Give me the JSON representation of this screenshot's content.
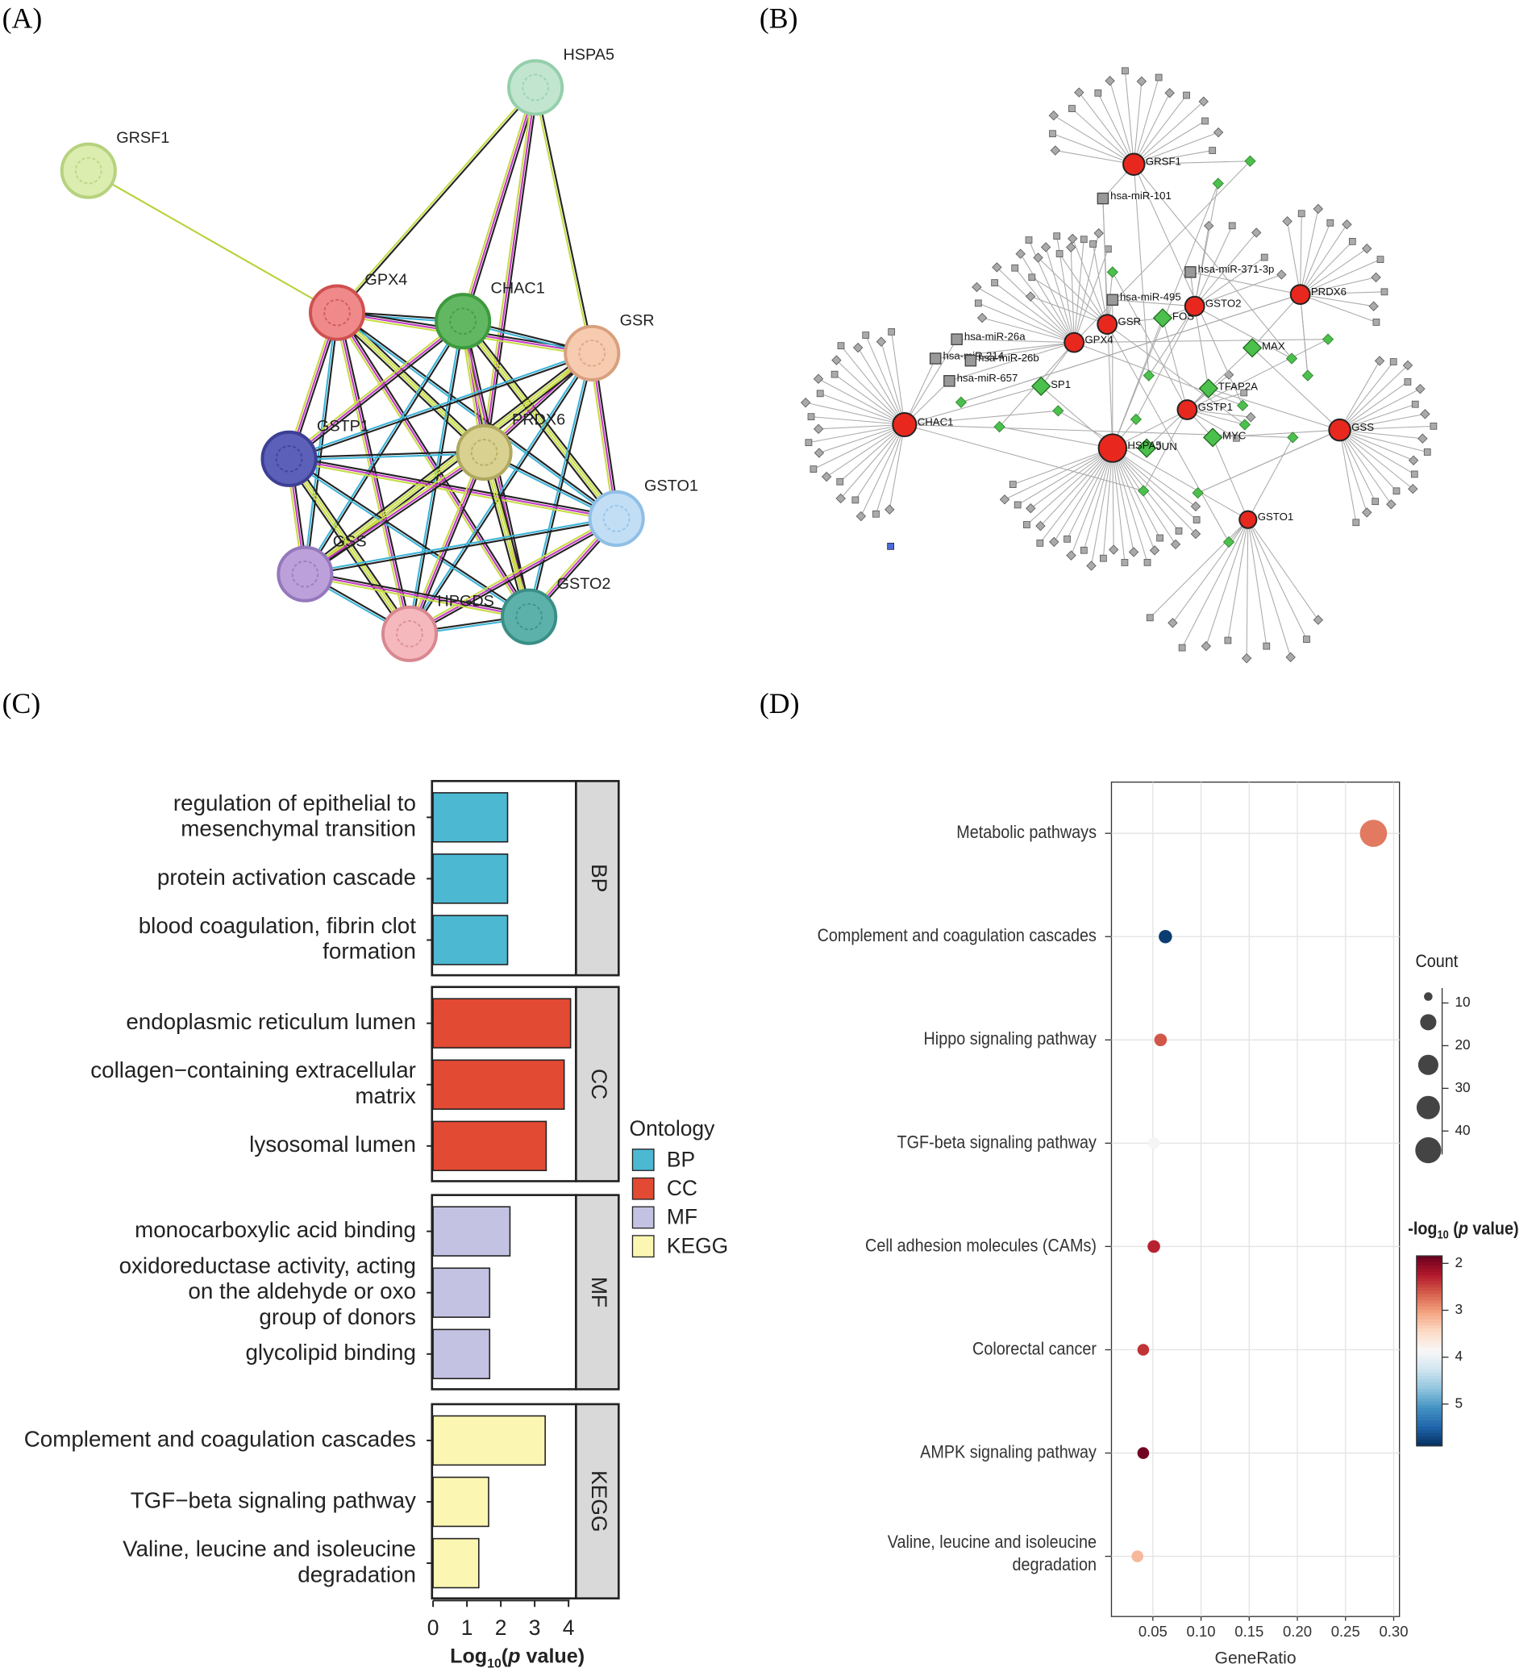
{
  "panels": [
    "(A)",
    "(B)",
    "(C)",
    "(D)"
  ],
  "network_a": {
    "nodes": [
      "GRSF1",
      "HSPA5",
      "GPX4",
      "CHAC1",
      "GSR",
      "GSTP1",
      "PRDX6",
      "GSTO1",
      "GSS",
      "HPGDS",
      "GSTO2"
    ]
  },
  "network_b": {
    "genes": [
      "GRSF1",
      "GSR",
      "GSTO2",
      "PRDX6",
      "GPX4",
      "CHAC1",
      "HSPA5",
      "GSTP1",
      "GSS",
      "GSTO1"
    ],
    "mirnas": [
      "hsa-miR-101",
      "hsa-miR-371-3p",
      "hsa-miR-495",
      "hsa-miR-26a",
      "hsa-miR-214",
      "hsa-miR-26b",
      "hsa-miR-657"
    ],
    "tfs": [
      "FOS",
      "MAX",
      "TFAP2A",
      "SP1",
      "JUN",
      "MYC"
    ]
  },
  "chart_data": [
    {
      "type": "bar",
      "orientation": "horizontal",
      "facets": [
        {
          "name": "BP",
          "color": "#4cb8d2",
          "categories": [
            [
              "regulation of epithelial to",
              "mesenchymal transition"
            ],
            [
              "protein activation cascade"
            ],
            [
              "blood coagulation, fibrin clot",
              "formation"
            ]
          ],
          "values": [
            2.2,
            2.2,
            2.2
          ]
        },
        {
          "name": "CC",
          "color": "#e34a33",
          "categories": [
            [
              "endoplasmic reticulum lumen"
            ],
            [
              "collagen−containing extracellular",
              "matrix"
            ],
            [
              "lysosomal lumen"
            ]
          ],
          "values": [
            4.06,
            3.87,
            3.34
          ]
        },
        {
          "name": "MF",
          "color": "#c4c2e3",
          "categories": [
            [
              "monocarboxylic acid binding"
            ],
            [
              "oxidoreductase activity, acting",
              "on the aldehyde or oxo",
              "group of donors"
            ],
            [
              "glycolipid binding"
            ]
          ],
          "values": [
            2.27,
            1.67,
            1.67
          ]
        },
        {
          "name": "KEGG",
          "color": "#fcf6b3",
          "categories": [
            [
              "Complement and coagulation cascades"
            ],
            [
              "TGF−beta signaling pathway"
            ],
            [
              "Valine, leucine and isoleucine",
              "degradation"
            ]
          ],
          "values": [
            3.31,
            1.64,
            1.35
          ]
        }
      ],
      "legend_title": "Ontology",
      "x_label_parts": [
        "Log",
        "10",
        "(",
        "p",
        " value)"
      ],
      "xlim": [
        0,
        4.22
      ],
      "xticks": [
        0,
        1,
        2,
        3,
        4
      ]
    },
    {
      "type": "scatter",
      "categories": [
        [
          "Metabolic pathways"
        ],
        [
          "Complement and coagulation cascades"
        ],
        [
          "Hippo signaling pathway"
        ],
        [
          "TGF-beta signaling pathway"
        ],
        [
          "Cell adhesion molecules (CAMs)"
        ],
        [
          "Colorectal cancer"
        ],
        [
          "AMPK signaling pathway"
        ],
        [
          "Valine, leucine and isoleucine",
          "degradation"
        ]
      ],
      "x": [
        0.279,
        0.063,
        0.058,
        0.051,
        0.051,
        0.04,
        0.04,
        0.034
      ],
      "size": [
        45,
        5,
        4,
        3,
        4,
        3,
        3,
        3
      ],
      "color_values": [
        2.8,
        5.8,
        2.6,
        3.9,
        2.3,
        2.4,
        1.9,
        3.2
      ],
      "x_label": "GeneRatio",
      "xlim": [
        0.007,
        0.306
      ],
      "xticks": [
        0.05,
        {
          "value": 0.1,
          "label": "0.10"
        },
        0.15,
        {
          "value": 0.2,
          "label": "0.20"
        },
        0.25,
        {
          "value": 0.3,
          "label": "0.30"
        }
      ],
      "grid": true,
      "size_title": "Count",
      "size_ticks": [
        10,
        20,
        30,
        40
      ],
      "color_title_parts": [
        "-log",
        "10",
        " (",
        "p",
        " value)"
      ],
      "clim": [
        1.84,
        5.89
      ],
      "cticks": [
        2,
        3,
        4,
        5
      ]
    }
  ]
}
